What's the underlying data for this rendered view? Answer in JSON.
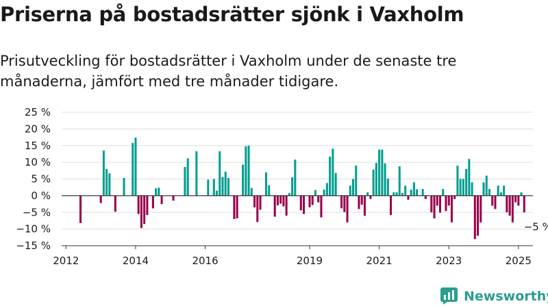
{
  "title": "Priserna på bostadsrätter sjönk i Vaxholm",
  "subtitle": "Prisutveckling för bostadsrätter i Vaxholm under de senaste tre månaderna, jämfört med tre månader tidigare.",
  "brand": "Newsworthy",
  "colors": {
    "positive": "#009e90",
    "negative": "#99004c",
    "grid": "#dddddd",
    "axis": "#333333",
    "brand": "#2a9d8f"
  },
  "chart_data": {
    "type": "bar",
    "ylim": [
      -15,
      25
    ],
    "ytick_labels": [
      "25 %",
      "20 %",
      "15 %",
      "10 %",
      "5 %",
      "0 %",
      "−5 %",
      "−10 %",
      "−15 %"
    ],
    "ytick_values": [
      25,
      20,
      15,
      10,
      5,
      0,
      -5,
      -10,
      -15
    ],
    "xtick_labels": [
      "2012",
      "2014",
      "2016",
      "2019",
      "2021",
      "2023",
      "2025"
    ],
    "xtick_values": [
      "2012-01",
      "2014-01",
      "2016-01",
      "2019-01",
      "2021-01",
      "2023-01",
      "2025-01"
    ],
    "last_value_label": "−5 %",
    "points": [
      {
        "x": "2012-06",
        "y": -8.2
      },
      {
        "x": "2013-01",
        "y": -2.2
      },
      {
        "x": "2013-02",
        "y": 13.5
      },
      {
        "x": "2013-03",
        "y": 8
      },
      {
        "x": "2013-04",
        "y": 6.7
      },
      {
        "x": "2013-06",
        "y": -4.8
      },
      {
        "x": "2013-09",
        "y": 5.3
      },
      {
        "x": "2013-12",
        "y": 15.8
      },
      {
        "x": "2014-01",
        "y": 17.4
      },
      {
        "x": "2014-02",
        "y": -5.5
      },
      {
        "x": "2014-03",
        "y": -9.7
      },
      {
        "x": "2014-04",
        "y": -8.5
      },
      {
        "x": "2014-05",
        "y": -5.8
      },
      {
        "x": "2014-07",
        "y": -3.8
      },
      {
        "x": "2014-08",
        "y": 2.2
      },
      {
        "x": "2014-09",
        "y": 2.4
      },
      {
        "x": "2014-10",
        "y": -2.5
      },
      {
        "x": "2015-02",
        "y": -1.5
      },
      {
        "x": "2015-06",
        "y": 8.6
      },
      {
        "x": "2015-07",
        "y": 11.2
      },
      {
        "x": "2015-10",
        "y": 13.3
      },
      {
        "x": "2016-02",
        "y": 4.8
      },
      {
        "x": "2016-04",
        "y": 5
      },
      {
        "x": "2016-05",
        "y": 1.5
      },
      {
        "x": "2016-06",
        "y": 13.3
      },
      {
        "x": "2016-07",
        "y": 5.6
      },
      {
        "x": "2016-08",
        "y": 7.2
      },
      {
        "x": "2016-09",
        "y": 5.3
      },
      {
        "x": "2016-11",
        "y": -7
      },
      {
        "x": "2016-12",
        "y": -6.8
      },
      {
        "x": "2017-02",
        "y": 9.3
      },
      {
        "x": "2017-03",
        "y": 14.8
      },
      {
        "x": "2017-04",
        "y": 15
      },
      {
        "x": "2017-05",
        "y": 2.3
      },
      {
        "x": "2017-06",
        "y": -3.5
      },
      {
        "x": "2017-07",
        "y": -7.9
      },
      {
        "x": "2017-08",
        "y": -4.2
      },
      {
        "x": "2017-10",
        "y": 7
      },
      {
        "x": "2017-11",
        "y": 3.1
      },
      {
        "x": "2018-01",
        "y": -6.3
      },
      {
        "x": "2018-02",
        "y": -2.9
      },
      {
        "x": "2018-03",
        "y": -2.4
      },
      {
        "x": "2018-04",
        "y": -3.2
      },
      {
        "x": "2018-05",
        "y": -6
      },
      {
        "x": "2018-06",
        "y": 0.8
      },
      {
        "x": "2018-07",
        "y": 5.5
      },
      {
        "x": "2018-08",
        "y": 10.8
      },
      {
        "x": "2018-10",
        "y": -4.4
      },
      {
        "x": "2018-11",
        "y": -5.5
      },
      {
        "x": "2019-01",
        "y": -3.5
      },
      {
        "x": "2019-02",
        "y": -2.8
      },
      {
        "x": "2019-03",
        "y": 1.7
      },
      {
        "x": "2019-04",
        "y": -2
      },
      {
        "x": "2019-05",
        "y": -6.5
      },
      {
        "x": "2019-06",
        "y": 1.8
      },
      {
        "x": "2019-07",
        "y": 3.8
      },
      {
        "x": "2019-08",
        "y": 11.7
      },
      {
        "x": "2019-09",
        "y": 14.1
      },
      {
        "x": "2019-10",
        "y": 6.8
      },
      {
        "x": "2019-12",
        "y": -3.8
      },
      {
        "x": "2020-01",
        "y": -4.9
      },
      {
        "x": "2020-02",
        "y": -8
      },
      {
        "x": "2020-03",
        "y": 3
      },
      {
        "x": "2020-04",
        "y": 5
      },
      {
        "x": "2020-05",
        "y": 9
      },
      {
        "x": "2020-06",
        "y": -4
      },
      {
        "x": "2020-07",
        "y": -2.7
      },
      {
        "x": "2020-08",
        "y": -6
      },
      {
        "x": "2020-09",
        "y": 1
      },
      {
        "x": "2020-10",
        "y": -1
      },
      {
        "x": "2020-11",
        "y": 7.8
      },
      {
        "x": "2020-12",
        "y": 9.8
      },
      {
        "x": "2021-01",
        "y": 13.8
      },
      {
        "x": "2021-02",
        "y": 13.8
      },
      {
        "x": "2021-03",
        "y": 9.7
      },
      {
        "x": "2021-04",
        "y": 5.1
      },
      {
        "x": "2021-05",
        "y": -5.8
      },
      {
        "x": "2021-06",
        "y": 1
      },
      {
        "x": "2021-07",
        "y": 1
      },
      {
        "x": "2021-08",
        "y": 8.8
      },
      {
        "x": "2021-09",
        "y": 0.8
      },
      {
        "x": "2021-10",
        "y": 3
      },
      {
        "x": "2021-11",
        "y": -1.2
      },
      {
        "x": "2021-12",
        "y": 1.8
      },
      {
        "x": "2022-01",
        "y": 4
      },
      {
        "x": "2022-02",
        "y": 1.9
      },
      {
        "x": "2022-04",
        "y": 2
      },
      {
        "x": "2022-05",
        "y": -1
      },
      {
        "x": "2022-07",
        "y": -5
      },
      {
        "x": "2022-08",
        "y": -6.8
      },
      {
        "x": "2022-09",
        "y": -3
      },
      {
        "x": "2022-10",
        "y": -5.1
      },
      {
        "x": "2022-11",
        "y": 2
      },
      {
        "x": "2022-12",
        "y": -4.6
      },
      {
        "x": "2023-01",
        "y": -3
      },
      {
        "x": "2023-02",
        "y": -8
      },
      {
        "x": "2023-03",
        "y": -1
      },
      {
        "x": "2023-04",
        "y": 9
      },
      {
        "x": "2023-05",
        "y": 5
      },
      {
        "x": "2023-06",
        "y": 5
      },
      {
        "x": "2023-07",
        "y": 8
      },
      {
        "x": "2023-08",
        "y": 11
      },
      {
        "x": "2023-09",
        "y": 4
      },
      {
        "x": "2023-10",
        "y": -13
      },
      {
        "x": "2023-11",
        "y": -12
      },
      {
        "x": "2023-12",
        "y": -8
      },
      {
        "x": "2024-01",
        "y": 4
      },
      {
        "x": "2024-02",
        "y": 6
      },
      {
        "x": "2024-03",
        "y": 2
      },
      {
        "x": "2024-04",
        "y": -3
      },
      {
        "x": "2024-05",
        "y": -4
      },
      {
        "x": "2024-06",
        "y": 3
      },
      {
        "x": "2024-07",
        "y": 1
      },
      {
        "x": "2024-08",
        "y": 3
      },
      {
        "x": "2024-09",
        "y": -5
      },
      {
        "x": "2024-10",
        "y": -6
      },
      {
        "x": "2024-11",
        "y": -8
      },
      {
        "x": "2024-12",
        "y": -2
      },
      {
        "x": "2025-01",
        "y": -3
      },
      {
        "x": "2025-02",
        "y": 1
      },
      {
        "x": "2025-03",
        "y": -5
      }
    ]
  }
}
